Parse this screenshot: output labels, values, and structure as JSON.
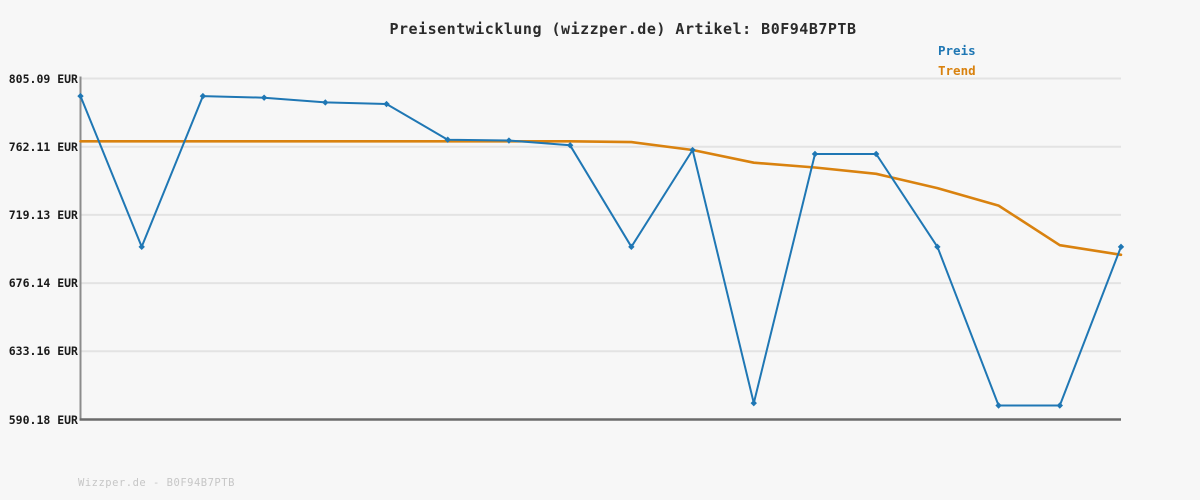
{
  "title": "Preisentwicklung (wizzper.de) Artikel: B0F94B7PTB",
  "legend": {
    "preis": "Preis",
    "trend": "Trend"
  },
  "footer": "Wizzper.de - B0F94B7PTB",
  "colors": {
    "preis_line": "#1f77b4",
    "trend_line": "#d9820f",
    "grid": "#e3e3e3",
    "y_axis_spine": "#8c8c8c",
    "x_axis_spine": "#6b6b6b",
    "background": "#f7f7f7",
    "title_text": "#2b2b2b",
    "tick_text": "#1a1a1a",
    "footer_text": "#c6c6c6"
  },
  "chart_data": {
    "type": "line",
    "title": "Preisentwicklung (wizzper.de) Artikel: B0F94B7PTB",
    "xlabel": "",
    "ylabel": "",
    "x_ticks": [],
    "y_ticks": [
      805.09,
      762.11,
      719.13,
      676.14,
      633.16,
      590.18
    ],
    "y_tick_labels": [
      "805.09 EUR",
      "762.11 EUR",
      "719.13 EUR",
      "676.14 EUR",
      "633.16 EUR",
      "590.18 EUR"
    ],
    "ylim": [
      590.18,
      805.09
    ],
    "grid": true,
    "legend_position": "top-right",
    "series": [
      {
        "name": "Preis",
        "color": "#1f77b4",
        "markers": true,
        "values": [
          794,
          699,
          794,
          793,
          790,
          789,
          766.5,
          766,
          763,
          699,
          760,
          600.5,
          757.5,
          757.5,
          699,
          599,
          599,
          699
        ]
      },
      {
        "name": "Trend",
        "color": "#d9820f",
        "markers": false,
        "values": [
          765.5,
          765.5,
          765.5,
          765.5,
          765.5,
          765.5,
          765.5,
          765.5,
          765.5,
          765,
          760,
          752,
          749,
          745,
          736,
          725,
          700,
          694
        ]
      }
    ]
  }
}
